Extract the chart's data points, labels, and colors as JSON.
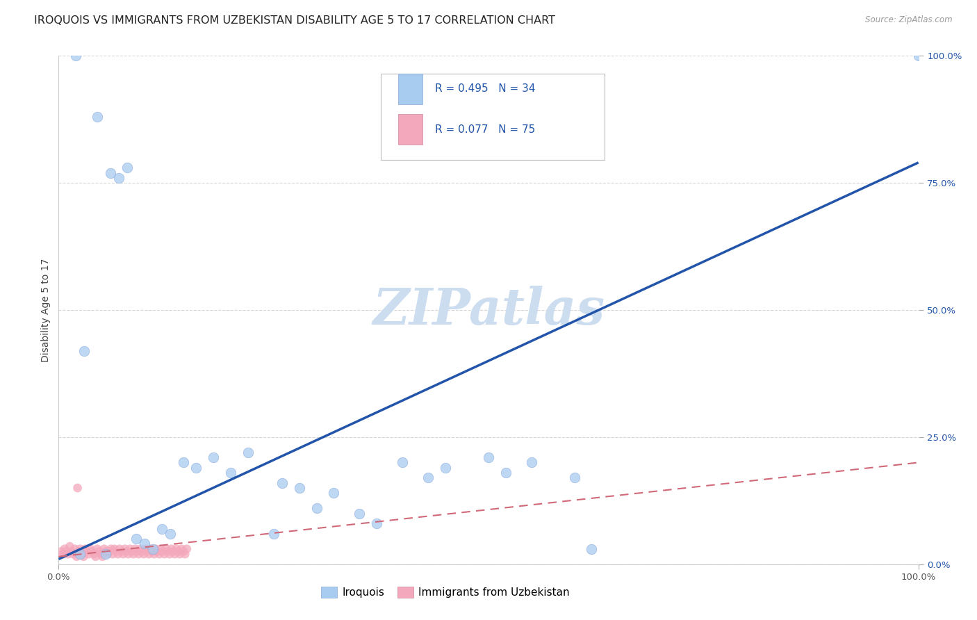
{
  "title": "IROQUOIS VS IMMIGRANTS FROM UZBEKISTAN DISABILITY AGE 5 TO 17 CORRELATION CHART",
  "source": "Source: ZipAtlas.com",
  "ylabel": "Disability Age 5 to 17",
  "ytick_labels": [
    "0.0%",
    "25.0%",
    "50.0%",
    "75.0%",
    "100.0%"
  ],
  "ytick_values": [
    0,
    25,
    50,
    75,
    100
  ],
  "xtick_labels": [
    "0.0%",
    "100.0%"
  ],
  "xtick_values": [
    0,
    100
  ],
  "legend_r1": "R = 0.495   N = 34",
  "legend_r2": "R = 0.077   N = 75",
  "legend_label1": "Iroquois",
  "legend_label2": "Immigrants from Uzbekistan",
  "iroquois_color": "#a8ccf0",
  "uzbekistan_color": "#f4a8bc",
  "iroquois_line_color": "#2255aa",
  "uzbekistan_line_color": "#d06878",
  "iroquois_x": [
    3.0,
    5.5,
    6.0,
    7.0,
    8.0,
    9.0,
    10.0,
    11.0,
    12.0,
    13.0,
    14.5,
    16.0,
    18.0,
    20.0,
    22.0,
    25.0,
    26.0,
    28.0,
    30.0,
    32.0,
    35.0,
    37.0,
    40.0,
    43.0,
    45.0,
    50.0,
    52.0,
    55.0,
    60.0,
    62.0,
    2.0,
    2.5,
    4.5,
    100.0
  ],
  "iroquois_y": [
    42.0,
    2.0,
    77.0,
    76.0,
    78.0,
    5.0,
    4.0,
    3.0,
    7.0,
    6.0,
    20.0,
    19.0,
    21.0,
    18.0,
    22.0,
    6.0,
    16.0,
    15.0,
    11.0,
    14.0,
    10.0,
    8.0,
    20.0,
    17.0,
    19.0,
    21.0,
    18.0,
    20.0,
    17.0,
    3.0,
    100.0,
    2.0,
    88.0,
    100.0
  ],
  "uzbekistan_x": [
    0.3,
    0.5,
    0.7,
    0.9,
    1.1,
    1.3,
    1.5,
    1.7,
    1.9,
    2.1,
    2.3,
    2.5,
    2.7,
    2.9,
    3.1,
    3.3,
    3.5,
    3.7,
    3.9,
    4.1,
    4.3,
    4.5,
    4.7,
    4.9,
    5.1,
    5.3,
    5.5,
    5.7,
    5.9,
    6.1,
    6.3,
    6.5,
    6.7,
    6.9,
    7.1,
    7.3,
    7.5,
    7.7,
    7.9,
    8.1,
    8.3,
    8.5,
    8.7,
    8.9,
    9.1,
    9.3,
    9.5,
    9.7,
    9.9,
    10.1,
    10.3,
    10.5,
    10.7,
    10.9,
    11.1,
    11.3,
    11.5,
    11.7,
    11.9,
    12.1,
    12.3,
    12.5,
    12.7,
    12.9,
    13.1,
    13.3,
    13.5,
    13.7,
    13.9,
    14.1,
    14.3,
    14.5,
    14.7,
    14.9,
    2.2
  ],
  "uzbekistan_y": [
    2.5,
    2.0,
    3.0,
    2.5,
    2.0,
    3.5,
    2.5,
    2.0,
    3.0,
    1.5,
    2.5,
    3.0,
    2.0,
    1.5,
    3.0,
    2.5,
    2.0,
    3.0,
    2.5,
    2.0,
    1.5,
    3.0,
    2.5,
    2.0,
    1.5,
    3.0,
    2.5,
    2.0,
    2.5,
    3.0,
    2.0,
    3.0,
    2.5,
    2.0,
    3.0,
    2.5,
    2.0,
    3.0,
    2.5,
    2.0,
    3.0,
    2.5,
    2.0,
    3.0,
    2.5,
    2.0,
    3.0,
    2.5,
    2.0,
    3.0,
    2.5,
    2.0,
    3.0,
    2.5,
    2.0,
    3.0,
    2.5,
    2.0,
    3.0,
    2.5,
    2.0,
    3.0,
    2.5,
    2.0,
    3.0,
    2.5,
    2.0,
    3.0,
    2.5,
    2.0,
    3.0,
    2.5,
    2.0,
    3.0,
    15.0
  ],
  "iroquois_trend_x": [
    0,
    100
  ],
  "iroquois_trend_y": [
    1,
    79
  ],
  "uzbekistan_trend_x": [
    0,
    100
  ],
  "uzbekistan_trend_y": [
    1.5,
    20
  ],
  "watermark_text": "ZIPatlas",
  "watermark_color": "#ccddf0",
  "bg_color": "#ffffff",
  "grid_color": "#cccccc",
  "title_fontsize": 11.5,
  "ytick_color": "#2255aa",
  "xtick_color": "#555555",
  "ylabel_fontsize": 10,
  "legend_fontsize": 11,
  "tick_fontsize": 9.5
}
